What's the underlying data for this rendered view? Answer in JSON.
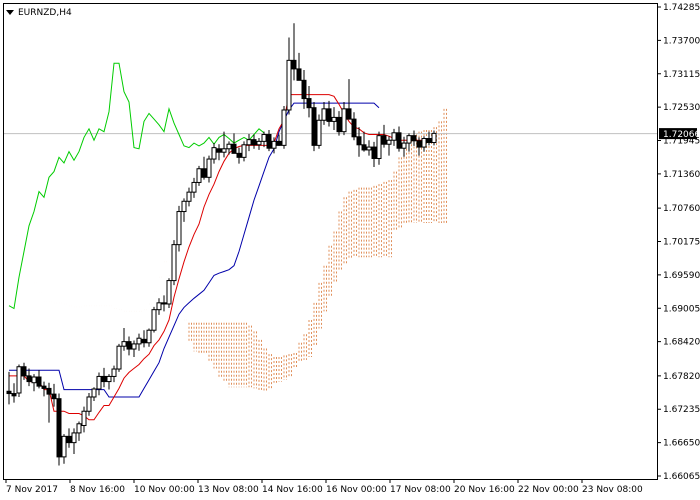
{
  "chart_data": {
    "type": "candlestick",
    "title": "EURNZD,H4",
    "last_price": "1.72066",
    "ylim": [
      1.66065,
      1.74285
    ],
    "yticks": [
      "1.74285",
      "1.73700",
      "1.73115",
      "1.72530",
      "1.71945",
      "1.71360",
      "1.70760",
      "1.70175",
      "1.69590",
      "1.69005",
      "1.68420",
      "1.67820",
      "1.67235",
      "1.66650",
      "1.66065"
    ],
    "xticks": [
      "7 Nov 2017",
      "8 Nov 16:00",
      "10 Nov 00:00",
      "13 Nov 08:00",
      "14 Nov 16:00",
      "16 Nov 00:00",
      "17 Nov 08:00",
      "20 Nov 16:00",
      "22 Nov 00:00",
      "23 Nov 08:00"
    ],
    "x": [
      0,
      1,
      2,
      3,
      4,
      5,
      6,
      7,
      8,
      9,
      10,
      11,
      12,
      13,
      14,
      15,
      16,
      17,
      18,
      19,
      20,
      21,
      22,
      23,
      24,
      25,
      26,
      27,
      28,
      29,
      30,
      31,
      32,
      33,
      34,
      35,
      36,
      37,
      38,
      39,
      40,
      41,
      42,
      43,
      44,
      45,
      46,
      47,
      48,
      49,
      50,
      51,
      52,
      53,
      54,
      55,
      56,
      57,
      58,
      59,
      60,
      61,
      62,
      63,
      64,
      65,
      66,
      67,
      68,
      69,
      70,
      71,
      72,
      73,
      74,
      75,
      76,
      77,
      78,
      79,
      80,
      81,
      82,
      83,
      84,
      85,
      86,
      87,
      88,
      89,
      90,
      91,
      92,
      93,
      94,
      95,
      96,
      97,
      98,
      99,
      100,
      101,
      102,
      103,
      104,
      105,
      106,
      107,
      108,
      109,
      110,
      111,
      112,
      113,
      114,
      115,
      116,
      117,
      118,
      119,
      120,
      121,
      122,
      123,
      124,
      125,
      126
    ],
    "candles": [
      [
        1.6755,
        1.6789,
        1.6732,
        1.6751
      ],
      [
        1.6751,
        1.6769,
        1.6735,
        1.6747
      ],
      [
        1.6752,
        1.6802,
        1.6745,
        1.6798
      ],
      [
        1.6798,
        1.6805,
        1.6775,
        1.6782
      ],
      [
        1.6782,
        1.6795,
        1.6764,
        1.6772
      ],
      [
        1.677,
        1.6785,
        1.6755,
        1.678
      ],
      [
        1.678,
        1.6792,
        1.676,
        1.6764
      ],
      [
        1.6764,
        1.6772,
        1.6746,
        1.676
      ],
      [
        1.676,
        1.677,
        1.67,
        1.675
      ],
      [
        1.675,
        1.6768,
        1.6728,
        1.6742
      ],
      [
        1.6742,
        1.6751,
        1.6625,
        1.664
      ],
      [
        1.664,
        1.668,
        1.6628,
        1.6676
      ],
      [
        1.6676,
        1.669,
        1.6656,
        1.6665
      ],
      [
        1.6665,
        1.669,
        1.6645,
        1.6682
      ],
      [
        1.6682,
        1.6702,
        1.6668,
        1.6698
      ],
      [
        1.6695,
        1.6728,
        1.6683,
        1.672
      ],
      [
        1.672,
        1.6752,
        1.6712,
        1.6745
      ],
      [
        1.6745,
        1.6762,
        1.6738,
        1.6759
      ],
      [
        1.6759,
        1.6788,
        1.6748,
        1.6781
      ],
      [
        1.6781,
        1.6796,
        1.6762,
        1.6772
      ],
      [
        1.6772,
        1.6785,
        1.6758,
        1.6781
      ],
      [
        1.6781,
        1.68,
        1.6771,
        1.6794
      ],
      [
        1.6794,
        1.6838,
        1.6789,
        1.6834
      ],
      [
        1.6834,
        1.6866,
        1.6826,
        1.6842
      ],
      [
        1.6842,
        1.6851,
        1.6818,
        1.6829
      ],
      [
        1.6829,
        1.6844,
        1.6815,
        1.6838
      ],
      [
        1.6838,
        1.6856,
        1.6826,
        1.6848
      ],
      [
        1.6846,
        1.6862,
        1.6832,
        1.684
      ],
      [
        1.684,
        1.6865,
        1.6833,
        1.6862
      ],
      [
        1.6862,
        1.6903,
        1.6858,
        1.6898
      ],
      [
        1.6898,
        1.6918,
        1.6889,
        1.691
      ],
      [
        1.691,
        1.6923,
        1.6895,
        1.6908
      ],
      [
        1.6908,
        1.6953,
        1.6901,
        1.6949
      ],
      [
        1.6949,
        1.702,
        1.6941,
        1.7012
      ],
      [
        1.7012,
        1.708,
        1.7,
        1.707
      ],
      [
        1.707,
        1.7093,
        1.7052,
        1.7088
      ],
      [
        1.7088,
        1.7112,
        1.7079,
        1.7104
      ],
      [
        1.7104,
        1.7129,
        1.7094,
        1.7121
      ],
      [
        1.7121,
        1.715,
        1.7115,
        1.7145
      ],
      [
        1.7145,
        1.7166,
        1.7126,
        1.713
      ],
      [
        1.713,
        1.7168,
        1.7121,
        1.7162
      ],
      [
        1.7162,
        1.719,
        1.7154,
        1.7182
      ],
      [
        1.718,
        1.7188,
        1.716,
        1.7174
      ],
      [
        1.7174,
        1.721,
        1.7165,
        1.718
      ],
      [
        1.718,
        1.7193,
        1.717,
        1.7188
      ],
      [
        1.7188,
        1.7207,
        1.7178,
        1.7172
      ],
      [
        1.7172,
        1.7182,
        1.7154,
        1.7165
      ],
      [
        1.7165,
        1.7193,
        1.7158,
        1.7187
      ],
      [
        1.7187,
        1.7206,
        1.7176,
        1.7196
      ],
      [
        1.7196,
        1.7205,
        1.718,
        1.7187
      ],
      [
        1.7187,
        1.7199,
        1.7178,
        1.7193
      ],
      [
        1.7193,
        1.721,
        1.7183,
        1.7205
      ],
      [
        1.7205,
        1.7213,
        1.7176,
        1.7181
      ],
      [
        1.7181,
        1.72,
        1.7172,
        1.7193
      ],
      [
        1.7193,
        1.7205,
        1.7185,
        1.7186
      ],
      [
        1.7186,
        1.7255,
        1.718,
        1.7248
      ],
      [
        1.7248,
        1.7375,
        1.724,
        1.7335
      ],
      [
        1.7335,
        1.74,
        1.73,
        1.732
      ],
      [
        1.732,
        1.7348,
        1.7305,
        1.73
      ],
      [
        1.73,
        1.7318,
        1.725,
        1.7268
      ],
      [
        1.7268,
        1.729,
        1.7235,
        1.7252
      ],
      [
        1.7252,
        1.7262,
        1.7176,
        1.7186
      ],
      [
        1.7186,
        1.724,
        1.718,
        1.723
      ],
      [
        1.723,
        1.7262,
        1.7222,
        1.725
      ],
      [
        1.725,
        1.7264,
        1.7219,
        1.7228
      ],
      [
        1.7228,
        1.7253,
        1.7213,
        1.7235
      ],
      [
        1.7235,
        1.7246,
        1.7203,
        1.721
      ],
      [
        1.721,
        1.7262,
        1.7204,
        1.725
      ],
      [
        1.725,
        1.7302,
        1.7239,
        1.7232
      ],
      [
        1.7232,
        1.7244,
        1.7195,
        1.7201
      ],
      [
        1.7201,
        1.7218,
        1.7166,
        1.7187
      ],
      [
        1.7187,
        1.721,
        1.7175,
        1.7178
      ],
      [
        1.7178,
        1.7195,
        1.7168,
        1.7183
      ],
      [
        1.7183,
        1.7192,
        1.7148,
        1.7163
      ],
      [
        1.7163,
        1.721,
        1.7152,
        1.7203
      ],
      [
        1.7203,
        1.7222,
        1.7182,
        1.7188
      ],
      [
        1.7188,
        1.7202,
        1.7168,
        1.7195
      ],
      [
        1.7195,
        1.7215,
        1.7185,
        1.7208
      ],
      [
        1.7208,
        1.7219,
        1.7175,
        1.7181
      ],
      [
        1.7181,
        1.7201,
        1.7166,
        1.719
      ],
      [
        1.719,
        1.7207,
        1.7175,
        1.7203
      ],
      [
        1.7203,
        1.7212,
        1.7185,
        1.7194
      ],
      [
        1.7194,
        1.72,
        1.7168,
        1.7183
      ],
      [
        1.7183,
        1.7202,
        1.7175,
        1.7198
      ],
      [
        1.7198,
        1.721,
        1.7186,
        1.7191
      ],
      [
        1.7191,
        1.7212,
        1.7186,
        1.7207
      ]
    ],
    "tenkan": [
      1.6782,
      1.6782,
      1.6782,
      1.6782,
      1.6772,
      1.6772,
      1.6772,
      1.6758,
      1.6758,
      1.672,
      1.672,
      1.672,
      1.6716,
      1.6716,
      1.6716,
      1.6712,
      1.6705,
      1.6705,
      1.6718,
      1.673,
      1.673,
      1.6745,
      1.676,
      1.6778,
      1.6788,
      1.6795,
      1.6802,
      1.6812,
      1.682,
      1.6835,
      1.6845,
      1.686,
      1.688,
      1.692,
      1.6952,
      1.6982,
      1.7008,
      1.703,
      1.7048,
      1.7078,
      1.71,
      1.7118,
      1.714,
      1.7158,
      1.7172,
      1.718,
      1.7184,
      1.7186,
      1.7186,
      1.7186,
      1.7186,
      1.7186,
      1.7186,
      1.719,
      1.7215,
      1.723,
      1.7275,
      1.7275,
      1.7275,
      1.7275,
      1.7275,
      1.7275,
      1.7275,
      1.7275,
      1.7275,
      1.7272,
      1.7258,
      1.7242,
      1.7228,
      1.7218,
      1.7215,
      1.7208,
      1.7205,
      1.7205,
      1.7205,
      1.7205,
      1.7202,
      1.7198,
      1.7195,
      1.7195,
      1.7195,
      1.7195,
      1.7195,
      1.7195,
      1.7195,
      1.7195
    ],
    "kijun": [
      1.6792,
      1.6792,
      1.6792,
      1.6792,
      1.6792,
      1.6792,
      1.6792,
      1.6792,
      1.6792,
      1.6792,
      1.6792,
      1.6758,
      1.6758,
      1.6758,
      1.6758,
      1.6758,
      1.6758,
      1.6758,
      1.6758,
      1.6758,
      1.6745,
      1.6745,
      1.6745,
      1.6745,
      1.6745,
      1.6745,
      1.6745,
      1.676,
      1.6775,
      1.679,
      1.6805,
      1.683,
      1.685,
      1.687,
      1.689,
      1.6902,
      1.691,
      1.6918,
      1.6925,
      1.6932,
      1.6945,
      1.6958,
      1.6962,
      1.6965,
      1.6968,
      1.6975,
      1.7,
      1.703,
      1.706,
      1.709,
      1.7115,
      1.714,
      1.7165,
      1.718,
      1.721,
      1.723,
      1.7248,
      1.726,
      1.726,
      1.726,
      1.726,
      1.726,
      1.726,
      1.726,
      1.726,
      1.726,
      1.726,
      1.726,
      1.726,
      1.726,
      1.726,
      1.726,
      1.726,
      1.726,
      1.7252
    ],
    "chikou": [
      1.6905,
      1.69,
      1.6955,
      1.7,
      1.7045,
      1.707,
      1.7105,
      1.7095,
      1.713,
      1.714,
      1.7165,
      1.7155,
      1.7175,
      1.716,
      1.7175,
      1.72,
      1.7215,
      1.7195,
      1.7215,
      1.721,
      1.7245,
      1.733,
      1.733,
      1.728,
      1.7262,
      1.7182,
      1.718,
      1.7228,
      1.7242,
      1.7232,
      1.7222,
      1.721,
      1.725,
      1.7225,
      1.7205,
      1.7185,
      1.7182,
      1.719,
      1.7185,
      1.719,
      1.72,
      1.7188,
      1.72,
      1.7205,
      1.7198,
      1.719,
      1.7195,
      1.72,
      1.7195,
      1.7205,
      1.7215,
      1.7208
    ],
    "senkou_a": [
      1.703,
      1.7028,
      1.7015,
      1.699,
      1.6965,
      1.6945,
      1.6928,
      1.6912,
      1.6912,
      1.691,
      1.691,
      1.6908,
      1.6905,
      1.6903,
      1.6903,
      1.6905,
      1.6905,
      1.6905,
      1.6905,
      1.6905,
      1.6905,
      1.69,
      1.6898,
      1.6895,
      1.6895,
      1.6895,
      1.6895,
      1.6898,
      1.6908,
      1.693,
      1.6955,
      1.6982,
      1.6958,
      1.6922,
      1.6895,
      1.688,
      1.6875,
      1.6875,
      1.6875,
      1.6875,
      1.6875,
      1.6875,
      1.6875,
      1.6875,
      1.6875,
      1.6875,
      1.6875,
      1.6875,
      1.687,
      1.686,
      1.6845,
      1.683,
      1.682,
      1.6815,
      1.6815,
      1.6818,
      1.682,
      1.6822,
      1.684,
      1.6855,
      1.688,
      1.691,
      1.6945,
      1.6975,
      1.701,
      1.7035,
      1.707,
      1.7095,
      1.7105,
      1.7108,
      1.7112,
      1.7112,
      1.7112,
      1.7115,
      1.7118,
      1.7122,
      1.7125,
      1.714,
      1.7165,
      1.718,
      1.7195,
      1.7205,
      1.721,
      1.7213,
      1.7213,
      1.7218,
      1.7228,
      1.725
    ],
    "senkou_b": [
      1.703,
      1.7028,
      1.7015,
      1.699,
      1.6965,
      1.6945,
      1.6928,
      1.6912,
      1.6912,
      1.691,
      1.691,
      1.6908,
      1.6905,
      1.6903,
      1.6903,
      1.6905,
      1.6905,
      1.6905,
      1.6905,
      1.6905,
      1.6905,
      1.69,
      1.6898,
      1.6895,
      1.6895,
      1.6895,
      1.6895,
      1.6898,
      1.6908,
      1.693,
      1.6955,
      1.6982,
      1.6958,
      1.6922,
      1.6895,
      1.688,
      1.6842,
      1.6825,
      1.6822,
      1.682,
      1.6808,
      1.6795,
      1.678,
      1.677,
      1.6762,
      1.6762,
      1.6762,
      1.6762,
      1.6762,
      1.676,
      1.6755,
      1.6753,
      1.676,
      1.677,
      1.6772,
      1.6775,
      1.678,
      1.6795,
      1.6805,
      1.681,
      1.6815,
      1.6835,
      1.6865,
      1.6895,
      1.692,
      1.6945,
      1.6965,
      1.6978,
      1.6988,
      1.699,
      1.699,
      1.699,
      1.699,
      1.699,
      1.699,
      1.699,
      1.699,
      1.7035,
      1.704,
      1.705,
      1.705,
      1.705,
      1.705,
      1.705,
      1.705,
      1.705,
      1.705,
      1.705
    ],
    "colors": {
      "up": "#000000",
      "down": "#000000",
      "tenkan": "#dd0000",
      "kijun": "#0000aa",
      "chikou": "#00cc00",
      "cloud_a": "#e08f5a",
      "cloud_b": "#c8b8b0",
      "bid_line": "#c0c0c0",
      "frame": "#000000"
    }
  }
}
